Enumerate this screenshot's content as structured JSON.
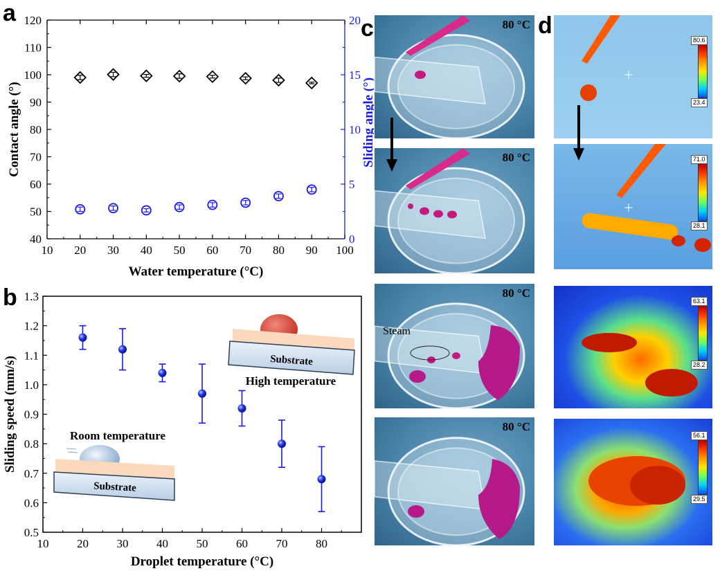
{
  "panels": {
    "a": "a",
    "b": "b",
    "c": "c",
    "d": "d"
  },
  "chart_data": [
    {
      "type": "scatter",
      "panel": "a",
      "xlabel": "Water temperature (°C)",
      "ylabel": "Contact angle (°)",
      "y2label": "Sliding angle (°)",
      "xlim": [
        10,
        100
      ],
      "ylim": [
        40,
        120
      ],
      "y2lim": [
        0,
        20
      ],
      "x_ticks": [
        10,
        20,
        30,
        40,
        50,
        60,
        70,
        80,
        90,
        100
      ],
      "y_ticks": [
        40,
        50,
        60,
        70,
        80,
        90,
        100,
        110,
        120
      ],
      "y2_ticks": [
        0,
        5,
        10,
        15,
        20
      ],
      "left_axis_color": "#000000",
      "right_axis_color": "#1a1ae6",
      "series": [
        {
          "axis": "left",
          "marker": "diamond",
          "color": "#000000",
          "x": [
            20,
            30,
            40,
            50,
            60,
            70,
            80,
            90
          ],
          "y": [
            99.0,
            100.1,
            99.6,
            99.5,
            99.3,
            98.7,
            98.0,
            97.0
          ],
          "err": [
            0.8,
            0.8,
            0.5,
            0.8,
            0.5,
            0.5,
            0.8,
            0.3
          ]
        },
        {
          "axis": "right",
          "marker": "circle",
          "color": "#1a1ae6",
          "x": [
            20,
            30,
            40,
            50,
            60,
            70,
            80,
            90
          ],
          "y": [
            2.7,
            2.8,
            2.6,
            2.9,
            3.1,
            3.3,
            3.9,
            4.5
          ],
          "err": [
            0.2,
            0.2,
            0.15,
            0.2,
            0.2,
            0.2,
            0.2,
            0.2
          ]
        }
      ]
    },
    {
      "type": "scatter",
      "panel": "b",
      "xlabel": "Droplet temperature (°C)",
      "ylabel": "Sliding speed (mm/s)",
      "xlim": [
        10,
        90
      ],
      "ylim": [
        0.5,
        1.3
      ],
      "x_ticks": [
        10,
        20,
        30,
        40,
        50,
        60,
        70,
        80
      ],
      "y_ticks": [
        0.5,
        0.6,
        0.7,
        0.8,
        0.9,
        1.0,
        1.1,
        1.2,
        1.3
      ],
      "series": [
        {
          "marker": "sphere",
          "color": "#1a1ae6",
          "x": [
            20,
            30,
            40,
            50,
            60,
            70,
            80
          ],
          "y": [
            1.16,
            1.12,
            1.04,
            0.97,
            0.92,
            0.8,
            0.68
          ],
          "err_low": [
            0.04,
            0.07,
            0.03,
            0.1,
            0.06,
            0.08,
            0.11
          ],
          "err_high": [
            0.04,
            0.07,
            0.03,
            0.1,
            0.06,
            0.08,
            0.11
          ]
        }
      ],
      "annotations": {
        "room_label": "Room temperature",
        "high_label": "High temperature",
        "substrate_label": "Substrate"
      }
    }
  ],
  "photos_c": [
    {
      "temp": "80 °C"
    },
    {
      "temp": "80 °C"
    },
    {
      "temp": "80 °C",
      "annotation": "Steam"
    },
    {
      "temp": "80 °C"
    }
  ],
  "thermal_d": [
    {
      "max": "80.6",
      "min": "23.4"
    },
    {
      "max": "71.0",
      "min": "28.1"
    },
    {
      "max": "63.1",
      "min": "28.2"
    },
    {
      "max": "56.1",
      "min": "29.5"
    }
  ]
}
